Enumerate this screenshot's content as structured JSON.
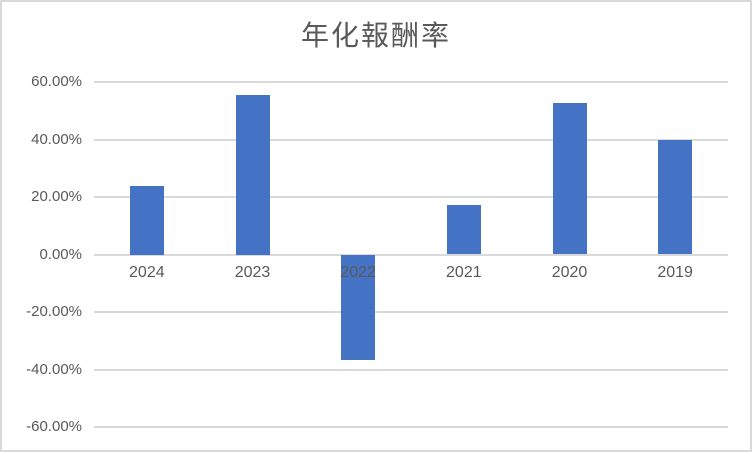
{
  "chart": {
    "title": "年化報酬率"
  },
  "chart_data": {
    "type": "bar",
    "title": "年化報酬率",
    "categories": [
      "2024",
      "2023",
      "2022",
      "2021",
      "2020",
      "2019"
    ],
    "values": [
      24.0,
      55.5,
      -36.8,
      17.3,
      52.8,
      39.8
    ],
    "series_name": "年化報酬率",
    "xlabel": "",
    "ylabel": "",
    "ylim": [
      -60,
      60
    ],
    "ytick_step": 20,
    "ytick_labels": [
      "60.00%",
      "40.00%",
      "20.00%",
      "0.00%",
      "-20.00%",
      "-40.00%",
      "-60.00%"
    ],
    "grid": true,
    "legend": "none",
    "colors": {
      "bar": "#4472C4",
      "gridline": "#D9D9D9",
      "axis_label": "#595959",
      "title": "#595959",
      "background": "#FFFFFF",
      "border": "#D9D9D9"
    }
  }
}
